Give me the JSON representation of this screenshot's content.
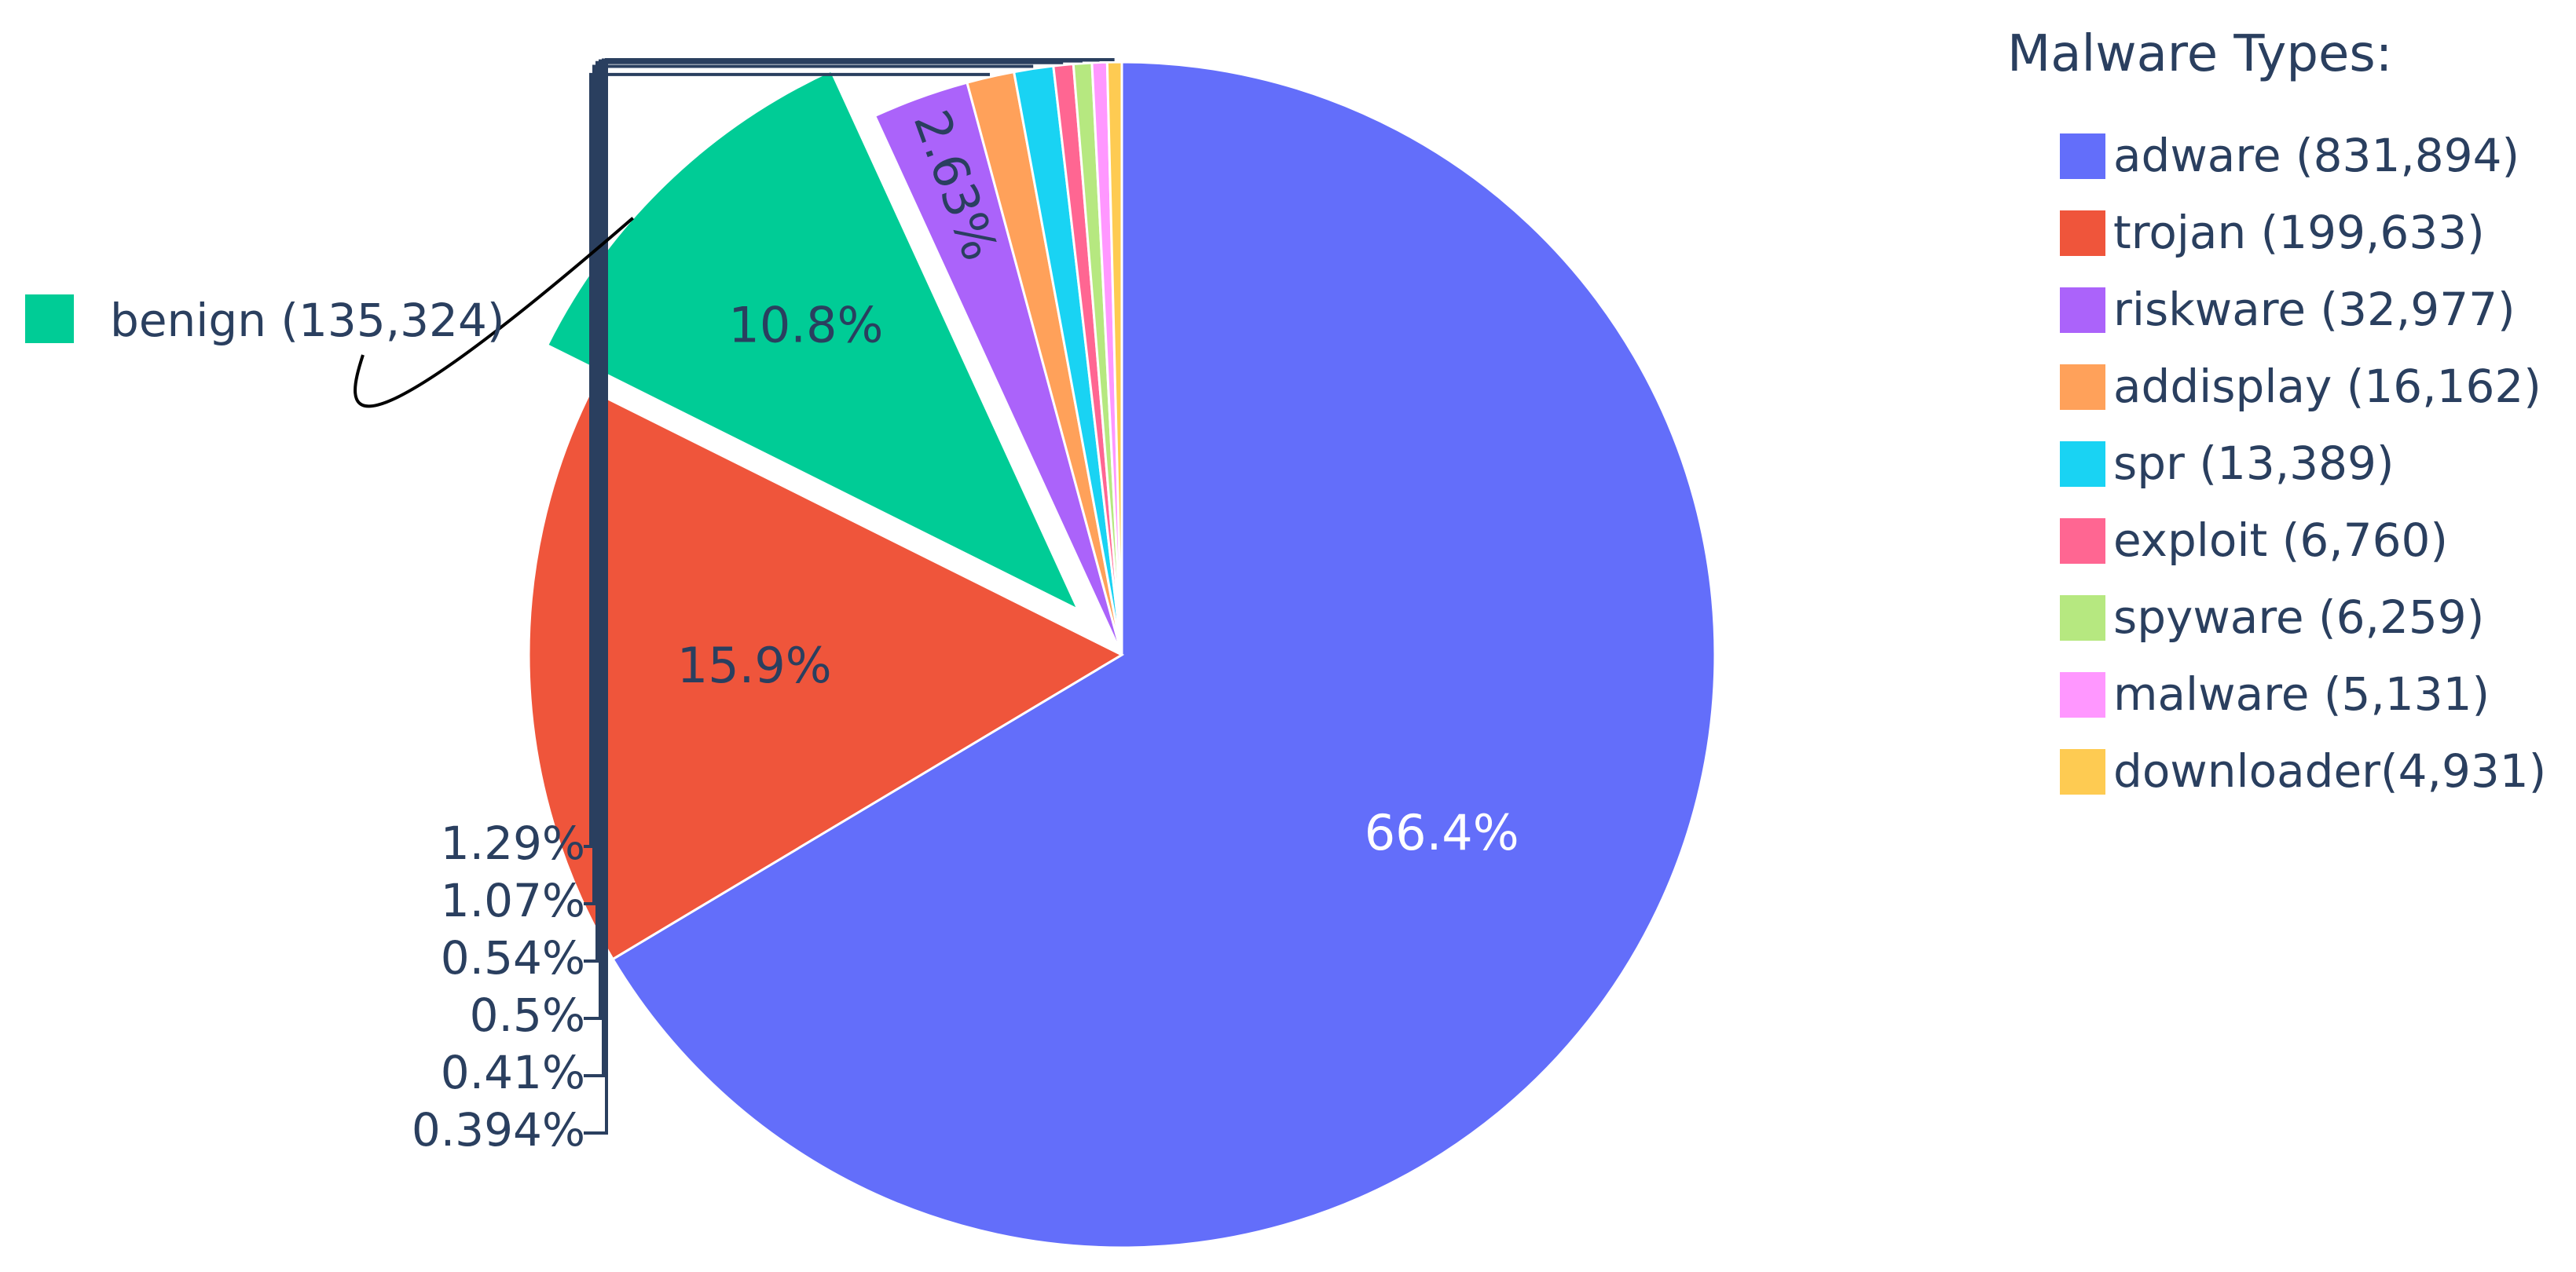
{
  "chart_data": {
    "type": "pie",
    "title": "",
    "legend_title": "Malware Types:",
    "legend_placement": "top-right",
    "slices": [
      {
        "label": "adware (831,894)",
        "value": 831894,
        "percent_label": "66.4%",
        "color": "#636efa"
      },
      {
        "label": "trojan (199,633)",
        "value": 199633,
        "percent_label": "15.9%",
        "color": "#ef553b"
      },
      {
        "label": "benign (135,324)",
        "value": 135324,
        "percent_label": "10.8%",
        "color": "#00cc96",
        "pulled": true
      },
      {
        "label": "riskware (32,977)",
        "value": 32977,
        "percent_label": "2.63%",
        "color": "#ab63fa"
      },
      {
        "label": "addisplay (16,162)",
        "value": 16162,
        "percent_label": "1.29%",
        "color": "#ffa15a"
      },
      {
        "label": "spr (13,389)",
        "value": 13389,
        "percent_label": "1.07%",
        "color": "#19d3f3"
      },
      {
        "label": "exploit (6,760)",
        "value": 6760,
        "percent_label": "0.54%",
        "color": "#ff6692"
      },
      {
        "label": "spyware (6,259)",
        "value": 6259,
        "percent_label": "0.5%",
        "color": "#b6e880"
      },
      {
        "label": "malware (5,131)",
        "value": 5131,
        "percent_label": "0.41%",
        "color": "#ff97ff"
      },
      {
        "label": "downloader(4,931)",
        "value": 4931,
        "percent_label": "0.394%",
        "color": "#fecb52"
      }
    ]
  }
}
